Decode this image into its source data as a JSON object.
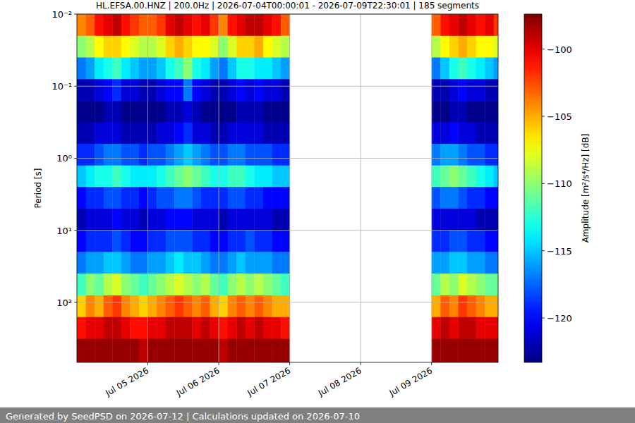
{
  "chart_data": {
    "type": "heatmap",
    "title": "HL.EFSA.00.HNZ | 200.0Hz | 2026-07-04T00:00:01 - 2026-07-09T22:30:01 | 185 segments",
    "y_label": "Period [s]",
    "footer": "Generated by SeedPSD on 2026-07-12 | Calculations updated on 2026-07-10",
    "log": "y",
    "grid": true,
    "xlim": [
      "2026-07-04T00:00:01",
      "2026-07-09T22:30:01"
    ],
    "xticks": [
      {
        "value": "2026-07-05T00:00:00",
        "label": "Jul 05 2026"
      },
      {
        "value": "2026-07-06T00:00:00",
        "label": "Jul 06 2026"
      },
      {
        "value": "2026-07-07T00:00:00",
        "label": "Jul 07 2026"
      },
      {
        "value": "2026-07-08T00:00:00",
        "label": "Jul 08 2026"
      },
      {
        "value": "2026-07-09T00:00:00",
        "label": "Jul 09 2026"
      }
    ],
    "ylim": [
      0.01,
      680
    ],
    "yticks": [
      {
        "value": 0.01,
        "label": "10⁻²"
      },
      {
        "value": 0.1,
        "label": "10⁻¹"
      },
      {
        "value": 1,
        "label": "10⁰"
      },
      {
        "value": 10,
        "label": "10¹"
      },
      {
        "value": 100,
        "label": "10²"
      }
    ],
    "x_bins": [
      "2026-07-04T00:00:01",
      "2026-07-04T03:00:00",
      "2026-07-04T06:00:00",
      "2026-07-04T09:00:00",
      "2026-07-04T12:00:00",
      "2026-07-04T15:00:00",
      "2026-07-04T18:00:00",
      "2026-07-04T21:00:00",
      "2026-07-05T00:00:00",
      "2026-07-05T03:00:00",
      "2026-07-05T06:00:00",
      "2026-07-05T09:00:00",
      "2026-07-05T12:00:00",
      "2026-07-05T15:00:00",
      "2026-07-05T18:00:00",
      "2026-07-05T21:00:00",
      "2026-07-06T00:00:00",
      "2026-07-06T03:00:00",
      "2026-07-06T06:00:00",
      "2026-07-06T09:00:00",
      "2026-07-06T12:00:00",
      "2026-07-06T15:00:00",
      "2026-07-06T18:00:00",
      "2026-07-06T21:00:00",
      "2026-07-07T00:00:00",
      "2026-07-09T00:00:00",
      "2026-07-09T03:00:00",
      "2026-07-09T06:00:00",
      "2026-07-09T09:00:00",
      "2026-07-09T12:00:00",
      "2026-07-09T15:00:00",
      "2026-07-09T18:00:00",
      "2026-07-09T21:00:00",
      "2026-07-09T22:30:01"
    ],
    "y_bins": [
      0.01,
      0.02,
      0.04,
      0.08,
      0.16,
      0.32,
      0.63,
      1.26,
      2.5,
      5,
      10,
      20,
      40,
      80,
      160,
      320,
      680
    ],
    "values": [
      [
        -104,
        -103,
        -101,
        -100,
        -99,
        -101,
        -102,
        -103,
        -103,
        -102,
        -100,
        -99,
        -100,
        -101,
        -100,
        -102,
        -104,
        -101,
        -100,
        -99,
        -99,
        -100,
        -101,
        -103,
        null,
        -103,
        -101,
        -100,
        -99,
        -100,
        -101,
        -100,
        -102
      ],
      [
        -110,
        -109,
        -107,
        -106,
        -106,
        -107,
        -108,
        -109,
        -109,
        -108,
        -106,
        -105,
        -106,
        -107,
        -107,
        -108,
        -110,
        -108,
        -106,
        -106,
        -105,
        -107,
        -108,
        -109,
        null,
        -109,
        -107,
        -106,
        -105,
        -106,
        -107,
        -107,
        -108
      ],
      [
        -117,
        -116,
        -114,
        -113,
        -112,
        -114,
        -115,
        -116,
        -116,
        -115,
        -113,
        -112,
        -110,
        -113,
        -114,
        -116,
        -117,
        -115,
        -113,
        -113,
        -114,
        -114,
        -115,
        -116,
        null,
        -117,
        -115,
        -113,
        -112,
        -113,
        -114,
        -115,
        -116
      ],
      [
        -122,
        -122,
        -121,
        -120,
        -119,
        -121,
        -121,
        -122,
        -122,
        -121,
        -120,
        -120,
        -117,
        -120,
        -121,
        -122,
        -122,
        -121,
        -120,
        -121,
        -120,
        -121,
        -121,
        -122,
        null,
        -122,
        -122,
        -121,
        -120,
        -121,
        -121,
        -122,
        -122
      ],
      [
        -123,
        -123,
        -123,
        -122,
        -122,
        -123,
        -123,
        -123,
        -123,
        -123,
        -122,
        -122,
        -121,
        -122,
        -123,
        -123,
        -123,
        -123,
        -122,
        -122,
        -122,
        -123,
        -123,
        -123,
        null,
        -123,
        -123,
        -122,
        -122,
        -123,
        -123,
        -123,
        -123
      ],
      [
        -122,
        -122,
        -121,
        -121,
        -121,
        -122,
        -122,
        -122,
        -122,
        -121,
        -121,
        -120,
        -119,
        -121,
        -121,
        -122,
        -122,
        -121,
        -121,
        -121,
        -121,
        -122,
        -122,
        -122,
        null,
        -121,
        -121,
        -120,
        -121,
        -121,
        -122,
        -122,
        -122
      ],
      [
        -119,
        -119,
        -118,
        -117,
        -117,
        -118,
        -118,
        -119,
        -118,
        -118,
        -117,
        -116,
        -115,
        -116,
        -117,
        -118,
        -118,
        -117,
        -117,
        -118,
        -118,
        -118,
        -119,
        -119,
        null,
        -117,
        -116,
        -116,
        -117,
        -118,
        -118,
        -119,
        -119
      ],
      [
        -115,
        -114,
        -113,
        -113,
        -112,
        -113,
        -114,
        -114,
        -114,
        -113,
        -112,
        -111,
        -110,
        -111,
        -112,
        -113,
        -113,
        -112,
        -112,
        -113,
        -114,
        -114,
        -115,
        -115,
        null,
        -112,
        -111,
        -110,
        -111,
        -112,
        -113,
        -114,
        -115
      ],
      [
        -120,
        -119,
        -119,
        -118,
        -118,
        -119,
        -119,
        -120,
        -119,
        -118,
        -118,
        -117,
        -117,
        -118,
        -119,
        -119,
        -119,
        -118,
        -118,
        -119,
        -119,
        -120,
        -120,
        -120,
        null,
        -118,
        -117,
        -117,
        -118,
        -119,
        -119,
        -120,
        -120
      ],
      [
        -122,
        -121,
        -121,
        -121,
        -120,
        -121,
        -121,
        -122,
        -121,
        -121,
        -120,
        -120,
        -120,
        -121,
        -121,
        -121,
        -122,
        -121,
        -121,
        -121,
        -121,
        -121,
        -122,
        -122,
        null,
        -121,
        -121,
        -121,
        -121,
        -121,
        -122,
        -122,
        -122
      ],
      [
        -120,
        -119,
        -119,
        -119,
        -118,
        -119,
        -120,
        -120,
        -119,
        -119,
        -118,
        -118,
        -118,
        -119,
        -119,
        -120,
        -120,
        -119,
        -119,
        -118,
        -119,
        -119,
        -120,
        -120,
        null,
        -119,
        -119,
        -118,
        -118,
        -119,
        -119,
        -120,
        -120
      ],
      [
        -117,
        -116,
        -116,
        -115,
        -115,
        -116,
        -117,
        -117,
        -116,
        -116,
        -115,
        -114,
        -115,
        -115,
        -116,
        -117,
        -117,
        -116,
        -115,
        -116,
        -116,
        -116,
        -117,
        -117,
        null,
        -116,
        -116,
        -115,
        -115,
        -116,
        -116,
        -117,
        -117
      ],
      [
        -112,
        -110,
        -111,
        -109,
        -108,
        -110,
        -111,
        -112,
        -111,
        -110,
        -109,
        -108,
        -109,
        -110,
        -109,
        -111,
        -112,
        -110,
        -109,
        -110,
        -109,
        -110,
        -111,
        -112,
        null,
        -111,
        -109,
        -110,
        -108,
        -109,
        -110,
        -111,
        -111
      ],
      [
        -106,
        -104,
        -105,
        -103,
        -102,
        -104,
        -105,
        -106,
        -105,
        -104,
        -103,
        -102,
        -103,
        -104,
        -103,
        -105,
        -106,
        -104,
        -103,
        -104,
        -103,
        -104,
        -105,
        -105,
        null,
        -105,
        -103,
        -104,
        -102,
        -103,
        -104,
        -105,
        -105
      ],
      [
        -101,
        -100,
        -100,
        -99,
        -99,
        -100,
        -101,
        -101,
        -100,
        -100,
        -99,
        -99,
        -99,
        -100,
        -99,
        -100,
        -101,
        -100,
        -99,
        -100,
        -99,
        -100,
        -100,
        -101,
        null,
        -100,
        -99,
        -100,
        -99,
        -99,
        -100,
        -100,
        -100
      ],
      [
        -98,
        -98,
        -98,
        -98,
        -98,
        -98,
        -98,
        -99,
        -98,
        -98,
        -98,
        -98,
        -98,
        -98,
        -98,
        -98,
        -99,
        -98,
        -98,
        -98,
        -98,
        -98,
        -98,
        -98,
        null,
        -98,
        -98,
        -98,
        -98,
        -98,
        -98,
        -98,
        -98
      ]
    ],
    "colorbar": {
      "label": "Amplitude [m²/s⁴/Hz] [dB]",
      "lim": [
        -123.3,
        -97.4
      ],
      "ticks": [
        {
          "value": -120,
          "label": "−120"
        },
        {
          "value": -115,
          "label": "−115"
        },
        {
          "value": -110,
          "label": "−110"
        },
        {
          "value": -105,
          "label": "−105"
        },
        {
          "value": -100,
          "label": "−100"
        }
      ]
    }
  }
}
